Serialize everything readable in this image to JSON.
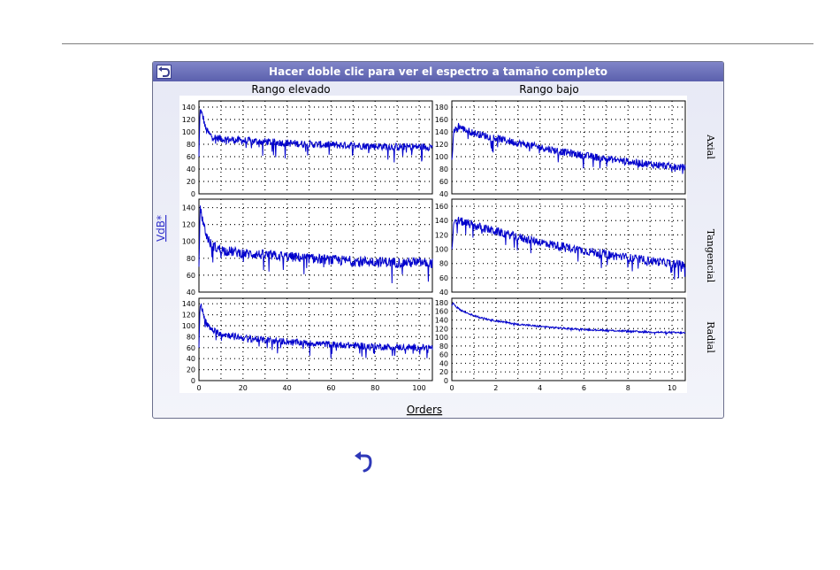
{
  "header": {
    "title": "Hacer doble clic para ver el espectro a tamaño completo",
    "back_icon": "back-arrow-icon"
  },
  "footer": {
    "back_icon": "back-arrow-icon"
  },
  "colors": {
    "series": "#0000cc",
    "title_bar": "#6a6fb8",
    "link": "#3333cc"
  },
  "chart_data": {
    "type": "line",
    "columns": [
      "Rango elevado",
      "Rango bajo"
    ],
    "rows": [
      "Axial",
      "Tangencial",
      "Radial"
    ],
    "ylabel": "VdB*",
    "xlabel": "Orders",
    "grid": true,
    "panels": [
      {
        "column": "Rango elevado",
        "row": "Axial",
        "xlim": [
          0,
          106
        ],
        "ylim": [
          0,
          150
        ],
        "yticks": [
          0,
          20,
          40,
          60,
          80,
          100,
          120,
          140
        ],
        "series": [
          {
            "x": [
              0,
              0.5,
              1,
              2,
              3,
              5,
              8,
              12,
              20,
              30,
              40,
              50,
              60,
              70,
              80,
              90,
              100,
              106
            ],
            "values": [
              60,
              135,
              132,
              122,
              105,
              95,
              90,
              88,
              86,
              84,
              82,
              80,
              79,
              78,
              77,
              76,
              76,
              76
            ]
          }
        ]
      },
      {
        "column": "Rango bajo",
        "row": "Axial",
        "xlim": [
          0,
          10.6
        ],
        "ylim": [
          40,
          190
        ],
        "yticks": [
          40,
          60,
          80,
          100,
          120,
          140,
          160,
          180
        ],
        "series": [
          {
            "x": [
              0,
              0.1,
              0.3,
              0.5,
              1,
              2,
              3,
              4,
              5,
              6,
              7,
              8,
              9,
              10,
              10.6
            ],
            "values": [
              95,
              140,
              150,
              145,
              138,
              130,
              122,
              115,
              108,
              102,
              97,
              92,
              88,
              84,
              82
            ]
          }
        ]
      },
      {
        "column": "Rango elevado",
        "row": "Tangencial",
        "xlim": [
          0,
          106
        ],
        "ylim": [
          40,
          150
        ],
        "yticks": [
          40,
          60,
          80,
          100,
          120,
          140
        ],
        "series": [
          {
            "x": [
              0,
              0.5,
              1,
              2,
              3,
              5,
              8,
              12,
              20,
              30,
              40,
              50,
              60,
              70,
              80,
              90,
              100,
              106
            ],
            "values": [
              70,
              138,
              133,
              123,
              110,
              98,
              92,
              89,
              86,
              84,
              82,
              80,
              78,
              77,
              76,
              75,
              75,
              74
            ]
          }
        ]
      },
      {
        "column": "Rango bajo",
        "row": "Tangencial",
        "xlim": [
          0,
          10.6
        ],
        "ylim": [
          40,
          170
        ],
        "yticks": [
          40,
          60,
          80,
          100,
          120,
          140,
          160
        ],
        "series": [
          {
            "x": [
              0,
              0.1,
              0.3,
              0.5,
              1,
              2,
              3,
              4,
              5,
              6,
              7,
              8,
              9,
              10,
              10.6
            ],
            "values": [
              100,
              135,
              140,
              138,
              133,
              125,
              117,
              110,
              104,
              98,
              93,
              88,
              84,
              80,
              78
            ]
          }
        ]
      },
      {
        "column": "Rango elevado",
        "row": "Radial",
        "xlim": [
          0,
          106
        ],
        "ylim": [
          0,
          150
        ],
        "yticks": [
          0,
          20,
          40,
          60,
          80,
          100,
          120,
          140
        ],
        "series": [
          {
            "x": [
              0,
              0.5,
              1,
              2,
              3,
              5,
              8,
              12,
              20,
              30,
              40,
              50,
              60,
              70,
              80,
              90,
              100,
              106
            ],
            "values": [
              60,
              138,
              135,
              122,
              108,
              95,
              88,
              84,
              78,
              74,
              71,
              68,
              66,
              64,
              62,
              61,
              60,
              60
            ]
          }
        ]
      },
      {
        "column": "Rango bajo",
        "row": "Radial",
        "xlim": [
          0,
          10.6
        ],
        "ylim": [
          0,
          190
        ],
        "yticks": [
          0,
          20,
          40,
          60,
          80,
          100,
          120,
          140,
          160,
          180
        ],
        "xticks": [
          0,
          2,
          4,
          6,
          8,
          10
        ],
        "series": [
          {
            "x": [
              0,
              0.05,
              0.2,
              0.5,
              1,
              1.5,
              2,
              3,
              4,
              5,
              6,
              7,
              8,
              9,
              10,
              10.6
            ],
            "values": [
              172,
              178,
              170,
              160,
              150,
              143,
              138,
              130,
              125,
              121,
              118,
              116,
              114,
              112,
              111,
              110
            ]
          }
        ]
      }
    ],
    "x_ticks_elevado": [
      0,
      20,
      40,
      60,
      80,
      100
    ],
    "x_ticks_bajo": [
      0,
      2,
      4,
      6,
      8,
      10
    ]
  }
}
